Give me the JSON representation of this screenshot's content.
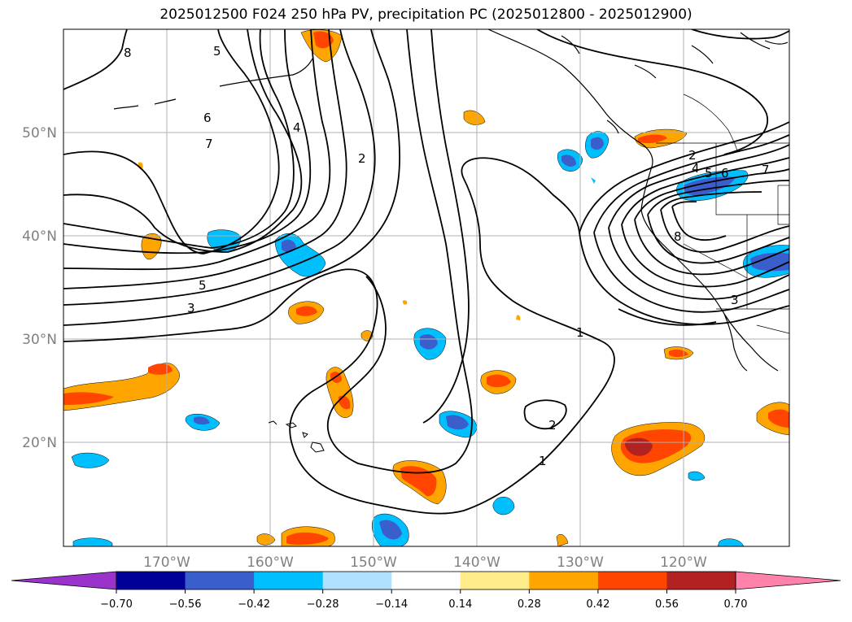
{
  "title": "2025012500 F024 250 hPa PV, precipitation PC (2025012800 - 2025012900)",
  "map": {
    "lat_labels": [
      "50°N",
      "40°N",
      "30°N",
      "20°N"
    ],
    "lon_labels": [
      "170°W",
      "160°W",
      "150°W",
      "140°W",
      "130°W",
      "120°W"
    ],
    "contour_labels": [
      "8",
      "5",
      "6",
      "7",
      "4",
      "2",
      "5",
      "3",
      "1",
      "2",
      "1",
      "2",
      "4",
      "5",
      "6",
      "7",
      "3",
      "8"
    ]
  },
  "colorbar": {
    "tick_labels": [
      "−0.70",
      "−0.56",
      "−0.42",
      "−0.28",
      "−0.14",
      "0.14",
      "0.28",
      "0.42",
      "0.56",
      "0.70"
    ],
    "colors": {
      "under": "#9933cc",
      "bins": [
        "#000099",
        "#3a5fcd",
        "#00bfff",
        "#b0e2ff",
        "#ffffff",
        "#ffec8b",
        "#ffa500",
        "#ff4500",
        "#b22222"
      ],
      "over": "#ff82ab"
    }
  }
}
